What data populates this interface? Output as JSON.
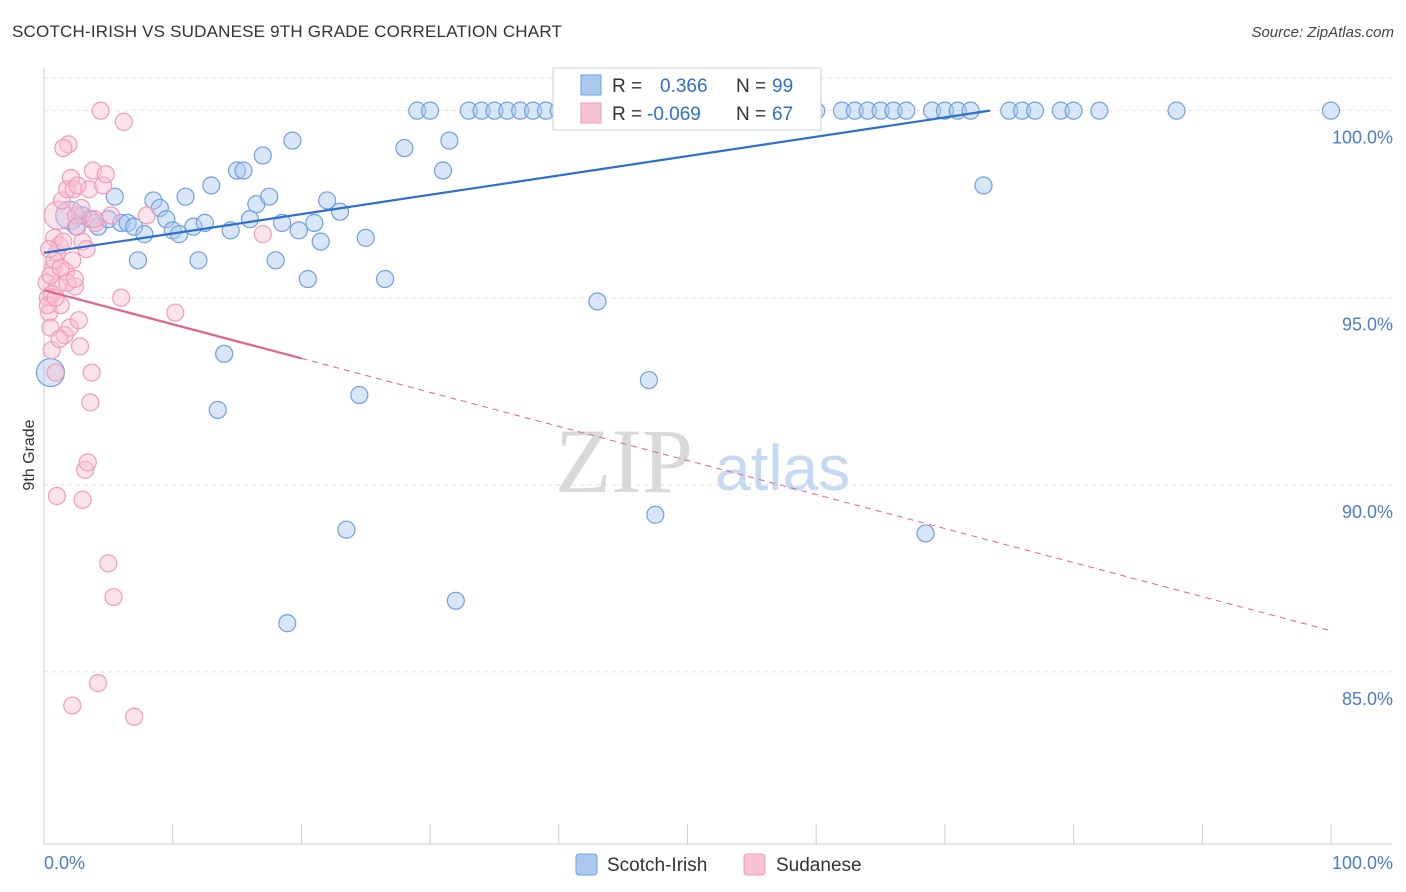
{
  "header": {
    "title": "SCOTCH-IRISH VS SUDANESE 9TH GRADE CORRELATION CHART",
    "source": "Source: ZipAtlas.com"
  },
  "watermark": {
    "zip": "ZIP",
    "atlas": "atlas"
  },
  "chart_data": {
    "type": "scatter",
    "title": "SCOTCH-IRISH VS SUDANESE 9TH GRADE CORRELATION CHART",
    "xlabel": "",
    "ylabel": "9th Grade",
    "xlim": [
      0,
      100
    ],
    "ylim": [
      80.4,
      101.3
    ],
    "x_tick_labels": [
      "0.0%",
      "100.0%"
    ],
    "y_ticks": [
      85,
      90,
      95,
      100
    ],
    "y_tick_labels": [
      "85.0%",
      "90.0%",
      "95.0%",
      "100.0%"
    ],
    "grid": true,
    "legend_position": "bottom",
    "stats_box": [
      {
        "series": "Scotch-Irish",
        "r_label": "R =",
        "r_value": "0.366",
        "n_label": "N =",
        "n_value": "99"
      },
      {
        "series": "Sudanese",
        "r_label": "R =",
        "r_value": "-0.069",
        "n_label": "N =",
        "n_value": "67"
      }
    ],
    "series": [
      {
        "name": "Scotch-Irish",
        "color": "#6f9fe0",
        "line_color": "#2e6fcc",
        "trend": {
          "x": [
            0,
            73.5
          ],
          "y": [
            96.2,
            100.0
          ],
          "dashed_extension": false
        },
        "points": [
          [
            0.5,
            93.0
          ],
          [
            2,
            97.2
          ],
          [
            2.5,
            96.9
          ],
          [
            3,
            97.2
          ],
          [
            3.6,
            97.1
          ],
          [
            4.2,
            96.9
          ],
          [
            5,
            97.1
          ],
          [
            5.5,
            97.7
          ],
          [
            6,
            97.0
          ],
          [
            6.5,
            97.0
          ],
          [
            7,
            96.9
          ],
          [
            7.3,
            96.0
          ],
          [
            7.8,
            96.7
          ],
          [
            8.5,
            97.6
          ],
          [
            9,
            97.4
          ],
          [
            9.5,
            97.1
          ],
          [
            10,
            96.8
          ],
          [
            10.5,
            96.7
          ],
          [
            11,
            97.7
          ],
          [
            11.6,
            96.9
          ],
          [
            12,
            96.0
          ],
          [
            12.5,
            97.0
          ],
          [
            13,
            98.0
          ],
          [
            13.5,
            92.0
          ],
          [
            14,
            93.5
          ],
          [
            14.5,
            96.8
          ],
          [
            15,
            98.4
          ],
          [
            15.5,
            98.4
          ],
          [
            16,
            97.1
          ],
          [
            16.5,
            97.5
          ],
          [
            17,
            98.8
          ],
          [
            17.5,
            97.7
          ],
          [
            18,
            96.0
          ],
          [
            18.5,
            97.0
          ],
          [
            18.9,
            86.3
          ],
          [
            19.3,
            99.2
          ],
          [
            19.8,
            96.8
          ],
          [
            20.5,
            95.5
          ],
          [
            21,
            97.0
          ],
          [
            21.5,
            96.5
          ],
          [
            22,
            97.6
          ],
          [
            23,
            97.3
          ],
          [
            23.5,
            88.8
          ],
          [
            24.5,
            92.4
          ],
          [
            25,
            96.6
          ],
          [
            26.5,
            95.5
          ],
          [
            28,
            99.0
          ],
          [
            29,
            100.0
          ],
          [
            30,
            100.0
          ],
          [
            31,
            98.4
          ],
          [
            31.5,
            99.2
          ],
          [
            32,
            86.9
          ],
          [
            33,
            100.0
          ],
          [
            34,
            100.0
          ],
          [
            35,
            100.0
          ],
          [
            36,
            100.0
          ],
          [
            37,
            100.0
          ],
          [
            38,
            100.0
          ],
          [
            39,
            100.0
          ],
          [
            40,
            100.0
          ],
          [
            41,
            100.0
          ],
          [
            42,
            100.0
          ],
          [
            43,
            94.9
          ],
          [
            44,
            100.0
          ],
          [
            45,
            100.0
          ],
          [
            46,
            100.0
          ],
          [
            47,
            92.8
          ],
          [
            47.5,
            89.2
          ],
          [
            48.5,
            100.0
          ],
          [
            49,
            100.0
          ],
          [
            50,
            100.0
          ],
          [
            51,
            100.0
          ],
          [
            53,
            100.0
          ],
          [
            55,
            100.0
          ],
          [
            56,
            100.0
          ],
          [
            57,
            100.0
          ],
          [
            58,
            100.0
          ],
          [
            59,
            100.0
          ],
          [
            60,
            100.0
          ],
          [
            62,
            100.0
          ],
          [
            63,
            100.0
          ],
          [
            64,
            100.0
          ],
          [
            65,
            100.0
          ],
          [
            66,
            100.0
          ],
          [
            67,
            100.0
          ],
          [
            68.5,
            88.7
          ],
          [
            69,
            100.0
          ],
          [
            70,
            100.0
          ],
          [
            71,
            100.0
          ],
          [
            72,
            100.0
          ],
          [
            73,
            98.0
          ],
          [
            75,
            100.0
          ],
          [
            76,
            100.0
          ],
          [
            77,
            100.0
          ],
          [
            79,
            100.0
          ],
          [
            80,
            100.0
          ],
          [
            82,
            100.0
          ],
          [
            88,
            100.0
          ],
          [
            100,
            100.0
          ]
        ]
      },
      {
        "name": "Sudanese",
        "color": "#f29bb8",
        "line_color": "#e0648e",
        "trend": {
          "x": [
            0,
            100
          ],
          "y": [
            95.2,
            86.1
          ],
          "solid_until_x": 20
        },
        "points": [
          [
            0.2,
            95.4
          ],
          [
            0.3,
            95.0
          ],
          [
            0.4,
            94.6
          ],
          [
            0.5,
            94.2
          ],
          [
            0.6,
            93.6
          ],
          [
            0.7,
            95.8
          ],
          [
            0.8,
            96.6
          ],
          [
            0.9,
            93.0
          ],
          [
            1.0,
            96.2
          ],
          [
            1.0,
            95.3
          ],
          [
            1.1,
            97.2
          ],
          [
            1.2,
            96.4
          ],
          [
            1.3,
            94.8
          ],
          [
            1.4,
            97.6
          ],
          [
            1.5,
            96.5
          ],
          [
            1.6,
            94.0
          ],
          [
            1.7,
            95.7
          ],
          [
            1.8,
            97.9
          ],
          [
            1.9,
            99.1
          ],
          [
            2.0,
            94.2
          ],
          [
            2.1,
            98.2
          ],
          [
            2.2,
            96.0
          ],
          [
            2.3,
            97.9
          ],
          [
            2.4,
            95.3
          ],
          [
            2.5,
            97.2
          ],
          [
            2.6,
            96.9
          ],
          [
            2.7,
            94.4
          ],
          [
            2.8,
            93.7
          ],
          [
            2.9,
            97.4
          ],
          [
            3.0,
            96.5
          ],
          [
            3.2,
            90.4
          ],
          [
            3.4,
            90.6
          ],
          [
            3.5,
            97.9
          ],
          [
            3.6,
            92.2
          ],
          [
            3.7,
            93.0
          ],
          [
            3.8,
            98.4
          ],
          [
            4.0,
            97.0
          ],
          [
            4.2,
            84.7
          ],
          [
            4.4,
            100.0
          ],
          [
            4.6,
            98.0
          ],
          [
            4.8,
            98.3
          ],
          [
            5.0,
            87.9
          ],
          [
            5.2,
            97.2
          ],
          [
            5.4,
            87.0
          ],
          [
            6.0,
            95.0
          ],
          [
            6.2,
            99.7
          ],
          [
            7.0,
            83.8
          ],
          [
            8.0,
            97.2
          ],
          [
            10.2,
            94.6
          ],
          [
            17.0,
            96.7
          ],
          [
            1.0,
            89.7
          ],
          [
            2.2,
            84.1
          ],
          [
            3.0,
            89.6
          ],
          [
            1.5,
            99.0
          ],
          [
            0.5,
            95.6
          ],
          [
            0.8,
            96.0
          ],
          [
            1.2,
            93.9
          ],
          [
            2.6,
            98.0
          ],
          [
            3.3,
            96.3
          ],
          [
            0.4,
            96.3
          ],
          [
            1.8,
            95.4
          ],
          [
            2.4,
            95.5
          ],
          [
            3.9,
            97.1
          ],
          [
            0.3,
            94.8
          ],
          [
            0.6,
            95.1
          ],
          [
            1.3,
            95.8
          ],
          [
            0.9,
            95.0
          ]
        ]
      }
    ]
  },
  "legend": {
    "items": [
      {
        "label": "Scotch-Irish",
        "color": "#aac8f0",
        "border": "#6f9fe0"
      },
      {
        "label": "Sudanese",
        "color": "#f7c2d3",
        "border": "#f29bb8"
      }
    ]
  }
}
